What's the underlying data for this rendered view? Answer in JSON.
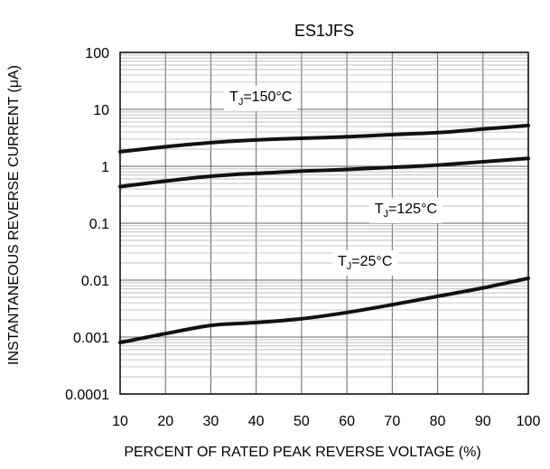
{
  "chart_data": {
    "type": "line",
    "title": "ES1JFS",
    "xlabel": "PERCENT OF RATED PEAK REVERSE VOLTAGE (%)",
    "ylabel": "INSTANTANEOUS REVERSE CURRENT (μA)",
    "xlim": [
      10,
      100
    ],
    "ylim": [
      0.0001,
      100
    ],
    "yscale": "log",
    "grid": true,
    "x_ticks": [
      "10",
      "20",
      "30",
      "40",
      "50",
      "60",
      "70",
      "80",
      "90",
      "100"
    ],
    "y_ticks": [
      "100",
      "10",
      "1",
      "0.1",
      "0.01",
      "0.001",
      "0.0001"
    ],
    "series": [
      {
        "name": "TJ=150°C",
        "x": [
          10,
          20,
          30,
          40,
          50,
          60,
          70,
          80,
          90,
          100
        ],
        "y": [
          1.8,
          2.2,
          2.6,
          2.9,
          3.1,
          3.3,
          3.6,
          3.9,
          4.5,
          5.2
        ]
      },
      {
        "name": "TJ=125°C",
        "x": [
          10,
          20,
          30,
          40,
          50,
          60,
          70,
          80,
          90,
          100
        ],
        "y": [
          0.44,
          0.55,
          0.67,
          0.75,
          0.82,
          0.88,
          0.96,
          1.05,
          1.2,
          1.38
        ]
      },
      {
        "name": "TJ=25°C",
        "x": [
          10,
          20,
          30,
          40,
          50,
          60,
          70,
          80,
          90,
          100
        ],
        "y": [
          0.0008,
          0.00115,
          0.0016,
          0.0018,
          0.0021,
          0.0027,
          0.0037,
          0.0052,
          0.0073,
          0.0108
        ]
      }
    ],
    "annotations": [
      {
        "prefix": "T",
        "sub": "J",
        "suffix": "=150°C",
        "x": 41,
        "y": 14
      },
      {
        "prefix": "T",
        "sub": "J",
        "suffix": "=125°C",
        "x": 73,
        "y": 0.15
      },
      {
        "prefix": "T",
        "sub": "J",
        "suffix": "=25°C",
        "x": 64,
        "y": 0.018
      }
    ]
  }
}
